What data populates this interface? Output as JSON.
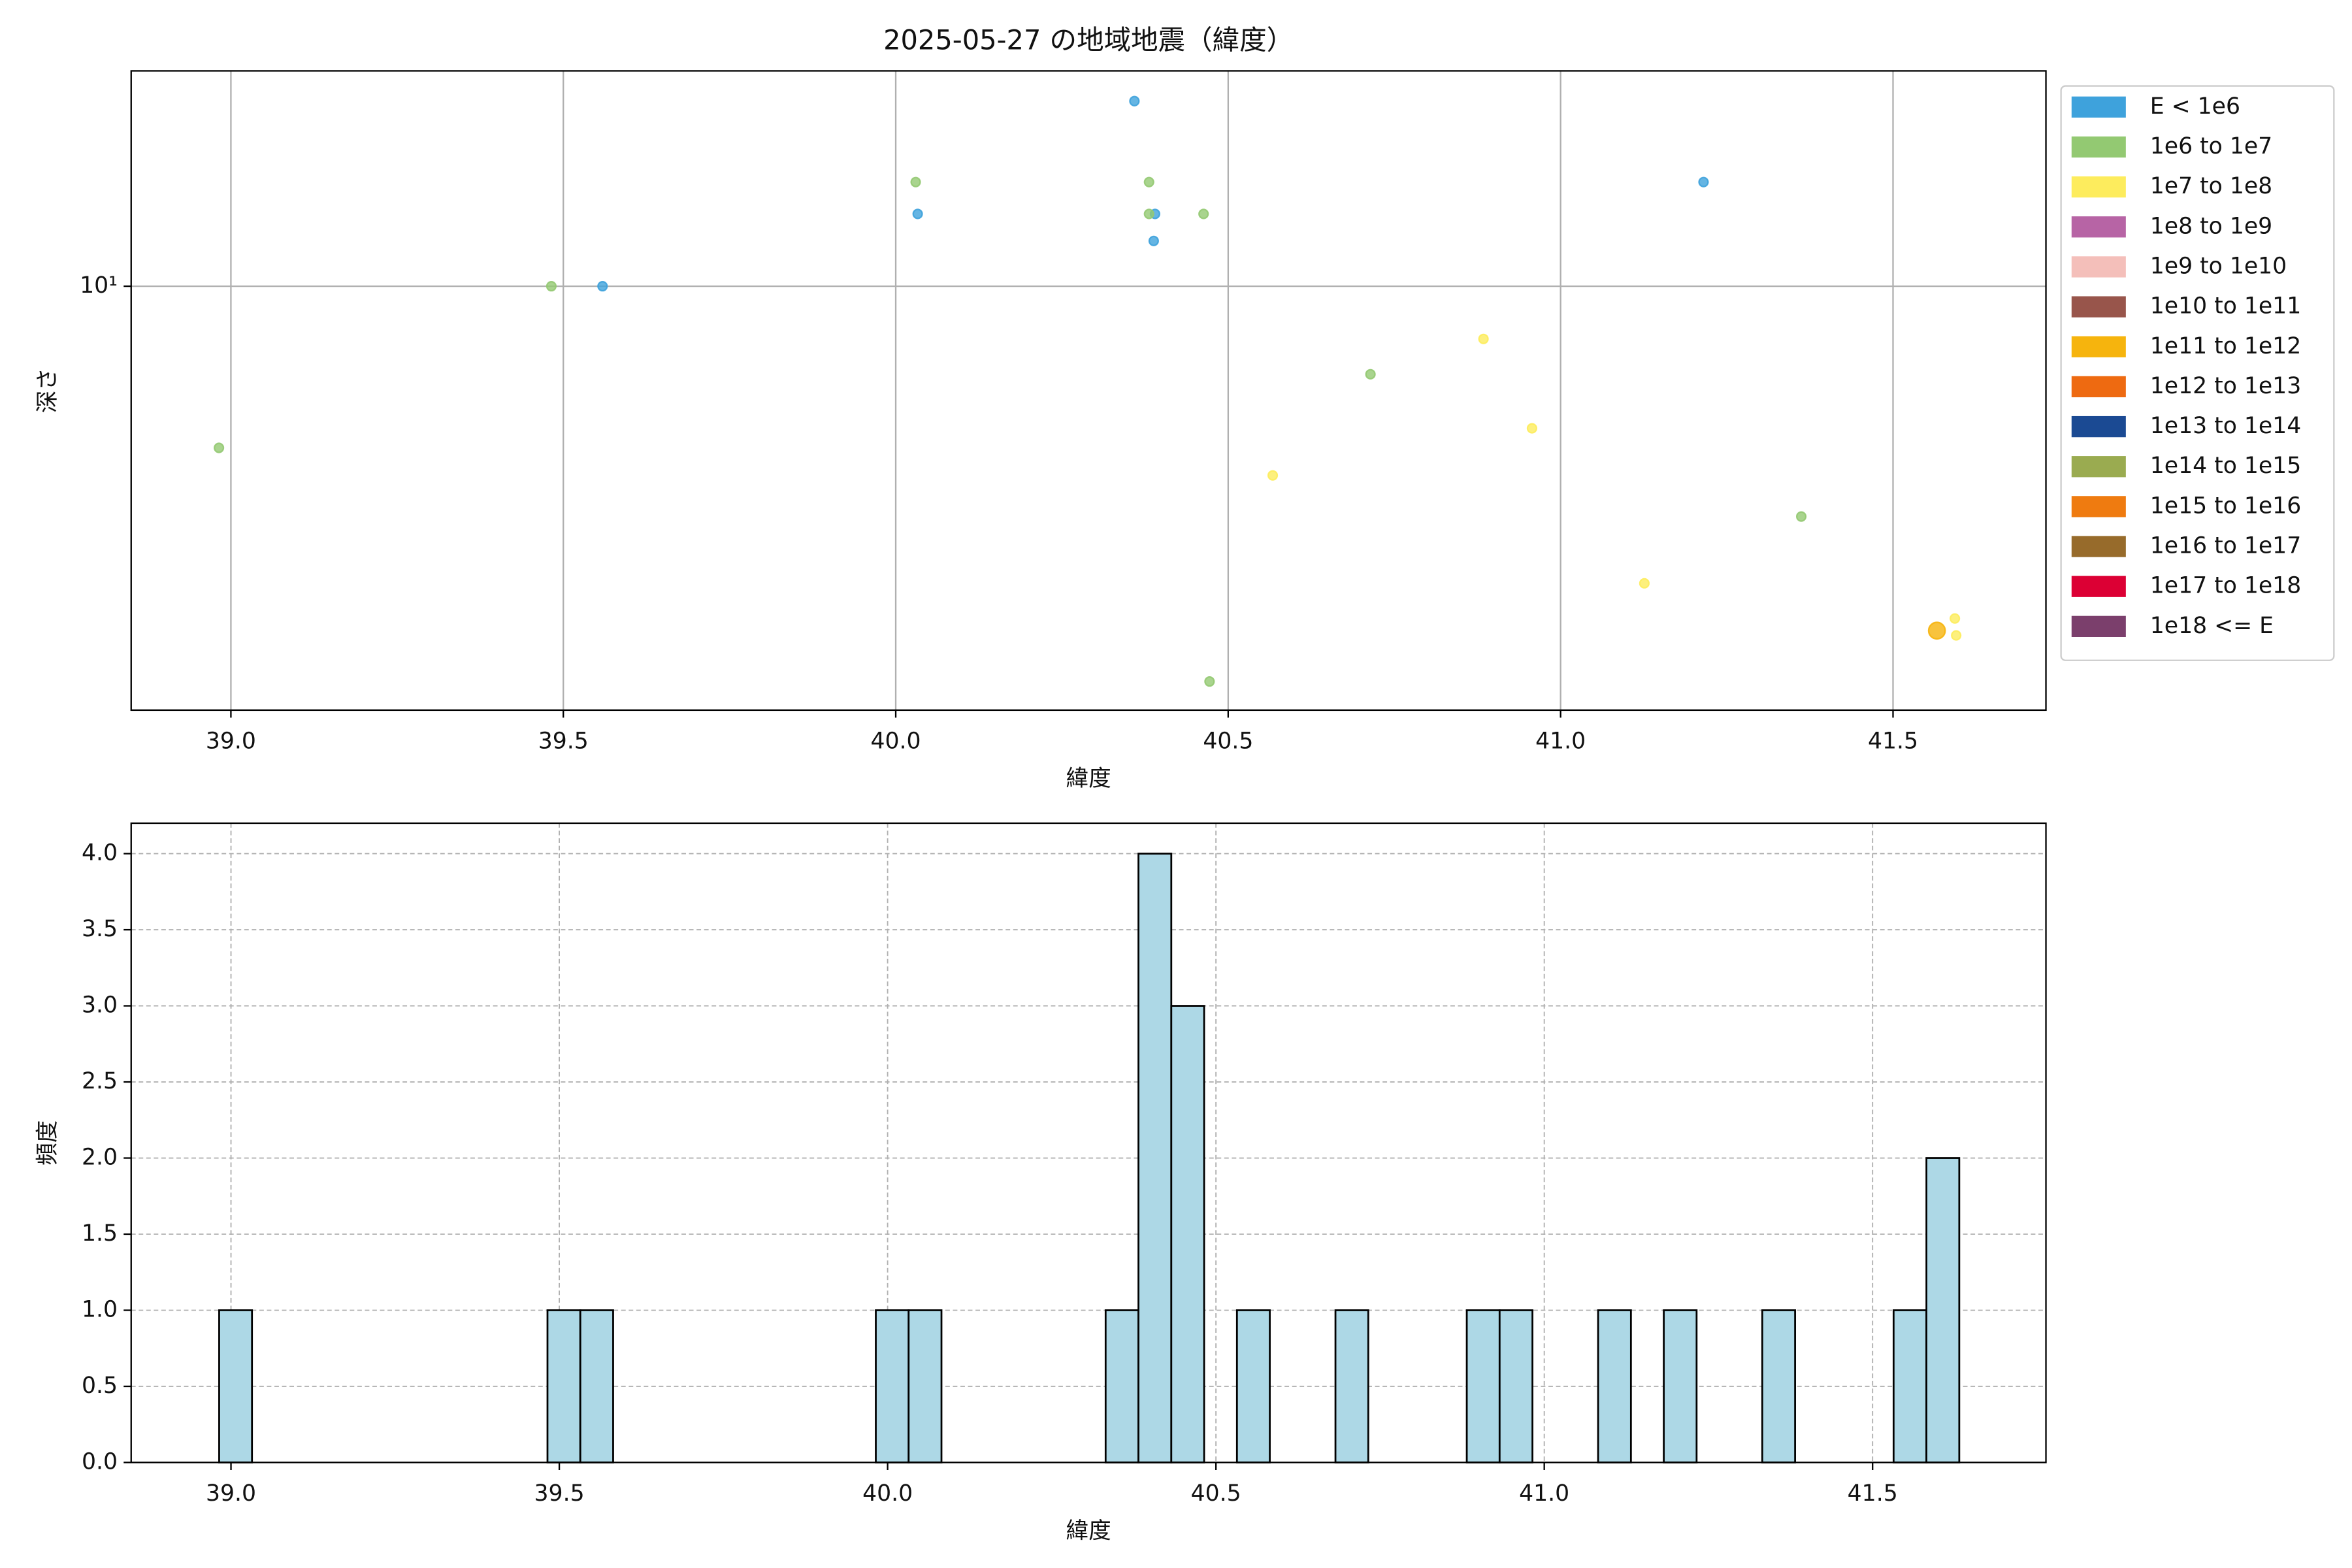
{
  "chart_data": [
    {
      "type": "scatter",
      "title": "2025-05-27 の地域地震（緯度）",
      "xlabel": "緯度",
      "ylabel": "深さ",
      "xlim": [
        38.85,
        41.73
      ],
      "ylim": [
        2.3,
        21.1
      ],
      "ylog": true,
      "grid": true,
      "legend": "outside",
      "xticks": [
        {
          "value": 39,
          "label": "39.0"
        },
        {
          "value": 39.5,
          "label": "39.5"
        },
        {
          "value": 40,
          "label": "40.0"
        },
        {
          "value": 40.5,
          "label": "40.5"
        },
        {
          "value": 41,
          "label": "41.0"
        },
        {
          "value": 41.5,
          "label": "41.5"
        }
      ],
      "yticks": [
        {
          "value": 10,
          "label": "10¹"
        }
      ],
      "series": [
        {
          "name": "E < 1e6",
          "color": "#3ea2dc",
          "x": [
            40.359,
            40.033,
            40.39,
            40.388,
            39.559,
            41.215
          ],
          "values": [
            19.0,
            12.85,
            12.85,
            11.7,
            10,
            14.35
          ]
        },
        {
          "name": "1e6 to 1e7",
          "color": "#93c972",
          "x": [
            38.982,
            39.482,
            40.03,
            40.381,
            40.381,
            40.463,
            40.714,
            41.362,
            40.472
          ],
          "values": [
            5.71,
            10,
            14.35,
            14.35,
            12.85,
            12.85,
            7.37,
            4.5,
            2.54
          ]
        },
        {
          "name": "1e7 to 1e8",
          "color": "#fdec5d",
          "x": [
            40.884,
            40.957,
            40.567,
            41.126,
            41.593,
            41.595
          ],
          "values": [
            8.33,
            6.11,
            5.19,
            3.57,
            3.16,
            2.98
          ]
        },
        {
          "name": "1e8 to 1e9",
          "color": "#b764a5",
          "x": [],
          "values": []
        },
        {
          "name": "1e9 to 1e10",
          "color": "#f4bfba",
          "x": [],
          "values": []
        },
        {
          "name": "1e10 to 1e11",
          "color": "#98554b",
          "x": [],
          "values": []
        },
        {
          "name": "1e11 to 1e12",
          "color": "#f6b40d",
          "x": [
            41.566
          ],
          "values": [
            3.03
          ]
        },
        {
          "name": "1e12 to 1e13",
          "color": "#ee6a11",
          "x": [],
          "values": []
        },
        {
          "name": "1e13 to 1e14",
          "color": "#1b4a93",
          "x": [],
          "values": []
        },
        {
          "name": "1e14 to 1e15",
          "color": "#9aab50",
          "x": [],
          "values": []
        },
        {
          "name": "1e15 to 1e16",
          "color": "#ef7b10",
          "x": [],
          "values": []
        },
        {
          "name": "1e16 to 1e17",
          "color": "#976b2b",
          "x": [],
          "values": []
        },
        {
          "name": "1e17 to 1e18",
          "color": "#dc0034",
          "x": [],
          "values": []
        },
        {
          "name": "1e18 <= E",
          "color": "#7b3f6c",
          "x": [],
          "values": []
        }
      ]
    },
    {
      "type": "histogram",
      "xlabel": "緯度",
      "ylabel": "頻度",
      "color": "#add8e6",
      "edgecolor": "#000000",
      "xlim": [
        38.848,
        41.764
      ],
      "ylim": [
        0,
        4.2
      ],
      "grid": true,
      "grid_style": "dashed",
      "xticks": [
        {
          "value": 39,
          "label": "39.0"
        },
        {
          "value": 39.5,
          "label": "39.5"
        },
        {
          "value": 40,
          "label": "40.0"
        },
        {
          "value": 40.5,
          "label": "40.5"
        },
        {
          "value": 41,
          "label": "41.0"
        },
        {
          "value": 41.5,
          "label": "41.5"
        }
      ],
      "yticks": [
        {
          "value": 0,
          "label": "0.0"
        },
        {
          "value": 0.5,
          "label": "0.5"
        },
        {
          "value": 1,
          "label": "1.0"
        },
        {
          "value": 1.5,
          "label": "1.5"
        },
        {
          "value": 2,
          "label": "2.0"
        },
        {
          "value": 2.5,
          "label": "2.5"
        },
        {
          "value": 3,
          "label": "3.0"
        },
        {
          "value": 3.5,
          "label": "3.5"
        },
        {
          "value": 4,
          "label": "4.0"
        }
      ],
      "bins": [
        38.982,
        39.032,
        39.082,
        39.132,
        39.182,
        39.232,
        39.282,
        39.332,
        39.382,
        39.432,
        39.482,
        39.532,
        39.582,
        39.632,
        39.682,
        39.732,
        39.782,
        39.832,
        39.882,
        39.932,
        39.982,
        40.032,
        40.082,
        40.132,
        40.182,
        40.232,
        40.282,
        40.332,
        40.382,
        40.432,
        40.482,
        40.532,
        40.582,
        40.632,
        40.682,
        40.732,
        40.782,
        40.832,
        40.882,
        40.932,
        40.982,
        41.032,
        41.082,
        41.132,
        41.182,
        41.232,
        41.282,
        41.332,
        41.382,
        41.432,
        41.482,
        41.532,
        41.582,
        41.632
      ],
      "values": [
        1,
        0,
        0,
        0,
        0,
        0,
        0,
        0,
        0,
        0,
        1,
        1,
        0,
        0,
        0,
        0,
        0,
        0,
        0,
        0,
        1,
        1,
        0,
        0,
        0,
        0,
        0,
        1,
        4,
        3,
        0,
        1,
        0,
        0,
        1,
        0,
        0,
        0,
        1,
        1,
        0,
        0,
        1,
        0,
        1,
        0,
        0,
        1,
        0,
        0,
        0,
        1,
        2
      ]
    }
  ]
}
